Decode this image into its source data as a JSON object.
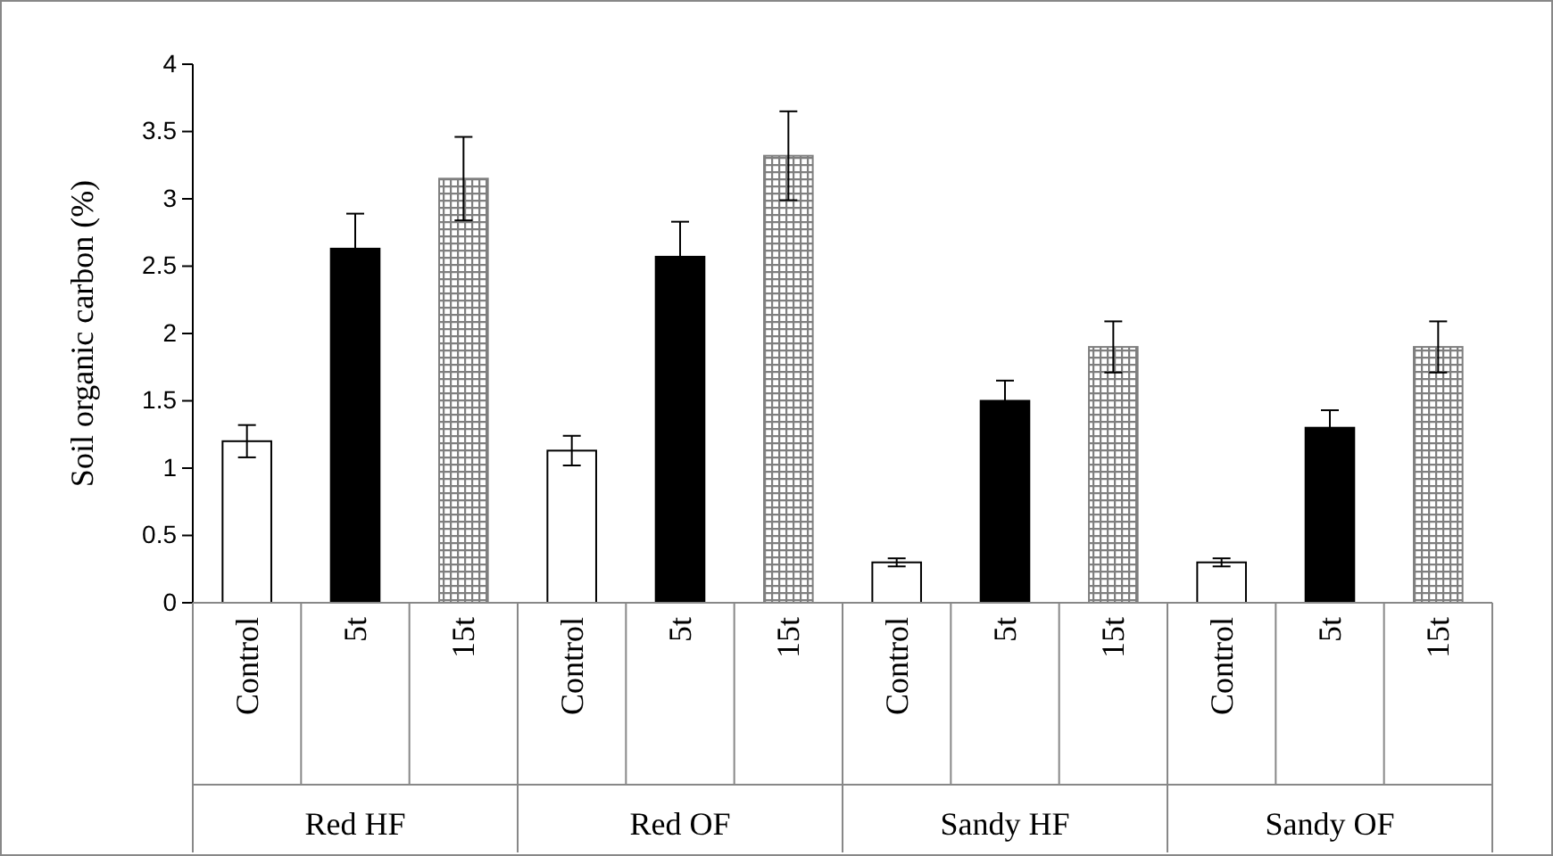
{
  "chart_data": {
    "type": "bar",
    "ylabel": "Soil organic carbon (%)",
    "categories": [
      "Red HF",
      "Red OF",
      "Sandy HF",
      "Sandy OF"
    ],
    "series": [
      {
        "name": "Control",
        "color": "#ffffff",
        "values": [
          1.2,
          1.13,
          0.3,
          0.3
        ],
        "errors": [
          0.12,
          0.11,
          0.03,
          0.03
        ]
      },
      {
        "name": "5t",
        "color": "#000000",
        "values": [
          2.63,
          2.57,
          1.5,
          1.3
        ],
        "errors": [
          0.26,
          0.26,
          0.15,
          0.13
        ]
      },
      {
        "name": "15t",
        "color": "#7f7f7f",
        "values": [
          3.15,
          3.32,
          1.9,
          1.9
        ],
        "errors": [
          0.31,
          0.33,
          0.19,
          0.19
        ]
      }
    ],
    "ylim": [
      0,
      4
    ],
    "yticks": [
      0,
      0.5,
      1,
      1.5,
      2,
      2.5,
      3,
      3.5,
      4
    ],
    "grid": false
  }
}
